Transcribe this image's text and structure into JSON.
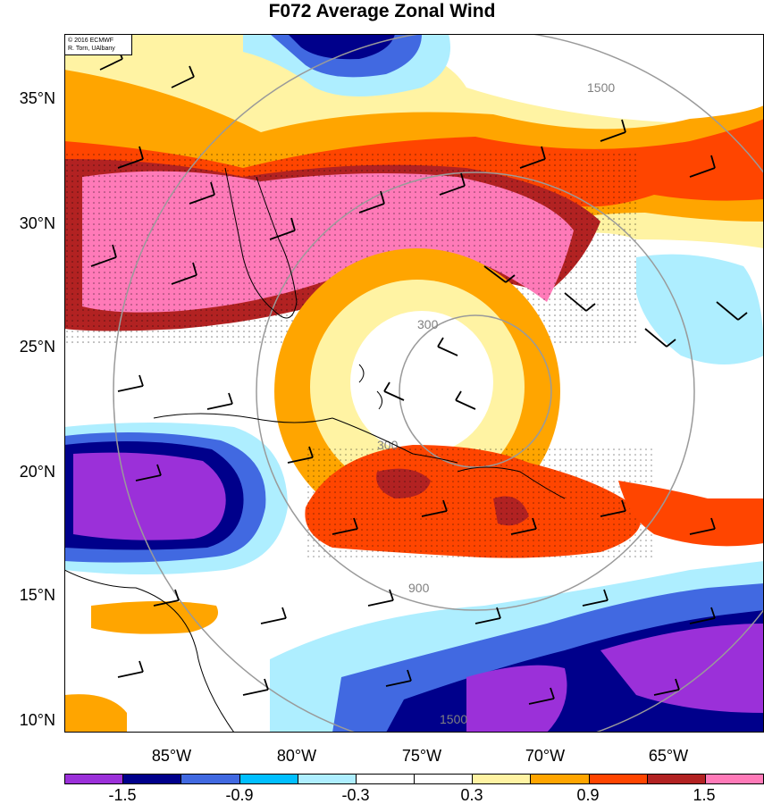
{
  "title": "F072 Average Zonal Wind",
  "credit": {
    "line1": "© 2016 ECMWF",
    "line2": "R. Torn, UAlbany"
  },
  "lat_labels": [
    "35°N",
    "30°N",
    "25°N",
    "20°N",
    "15°N",
    "10°N"
  ],
  "lon_labels": [
    "85°W",
    "80°W",
    "75°W",
    "70°W",
    "65°W"
  ],
  "range_ring_labels": [
    "300",
    "900",
    "1500"
  ],
  "colorbar": {
    "colors": [
      "#9b30d9",
      "#00008b",
      "#4169e1",
      "#00bfff",
      "#aeeeff",
      "#ffffff",
      "#ffffff",
      "#fff3a3",
      "#ffa500",
      "#ff4500",
      "#b22222",
      "#ff7ab8"
    ],
    "tick_labels": [
      "-1.5",
      "-0.9",
      "-0.3",
      "0.3",
      "0.9",
      "1.5"
    ]
  }
}
